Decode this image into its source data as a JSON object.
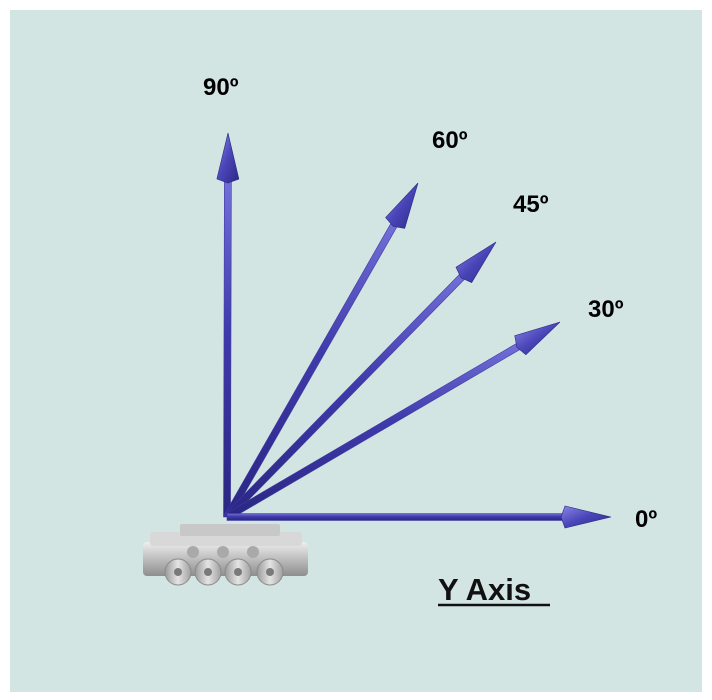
{
  "diagram": {
    "axis_label": "Y Axis",
    "arrow_color": "#3e3aa8",
    "arrows": [
      {
        "angle_deg": 90,
        "label": "90º"
      },
      {
        "angle_deg": 60,
        "label": "60º"
      },
      {
        "angle_deg": 45,
        "label": "45º"
      },
      {
        "angle_deg": 30,
        "label": "30º"
      },
      {
        "angle_deg": 0,
        "label": "0º"
      }
    ]
  }
}
